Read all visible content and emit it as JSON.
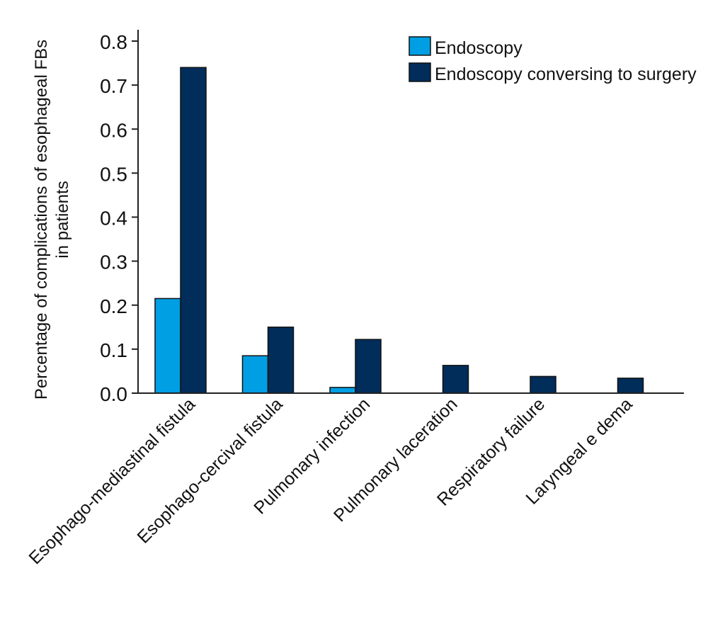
{
  "chart_data": {
    "type": "bar",
    "title": "",
    "xlabel": "",
    "ylabel": [
      "Percentage of complications of esophageal FBs",
      "in patients"
    ],
    "ylim": [
      0,
      0.8
    ],
    "yticks": [
      "0.0",
      "0.1",
      "0.2",
      "0.3",
      "0.4",
      "0.5",
      "0.6",
      "0.7",
      "0.8"
    ],
    "grid": false,
    "legend_position": "top-right",
    "categories": [
      "Esophago-mediastinal fistula",
      "Esophago-cercival fistula",
      "Pulmonary infection",
      "Pulmonary laceration",
      "Respiratory failure",
      "Laryngeal e dema"
    ],
    "series": [
      {
        "name": "Endoscopy",
        "color": "#009fe3",
        "values": [
          0.215,
          0.085,
          0.013,
          0,
          0,
          0
        ]
      },
      {
        "name": "Endoscopy conversing to surgery",
        "color": "#002d5a",
        "values": [
          0.74,
          0.15,
          0.122,
          0.063,
          0.038,
          0.034
        ]
      }
    ]
  }
}
